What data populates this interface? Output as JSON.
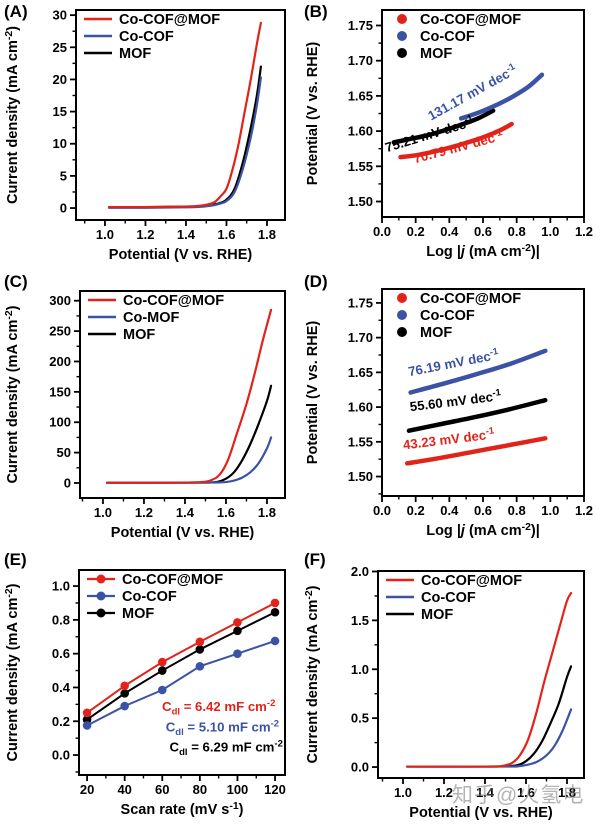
{
  "watermark": {
    "text": "知乎@火氢电",
    "color": "#7d7d7d"
  },
  "colors": {
    "red": "#e2231a",
    "blue": "#3a53a4",
    "black": "#000000"
  },
  "chart_data": [
    {
      "id": "A",
      "panel_label": "(A)",
      "type": "line",
      "series_style": "plain",
      "legend_marker": "line",
      "xlabel": "Potential (V vs. RHE)",
      "ylabel": "Current density (mA cm^{-2})",
      "xlim": [
        0.857,
        1.889
      ],
      "ylim": [
        -1.86,
        30.8
      ],
      "xticks": [
        1.0,
        1.2,
        1.4,
        1.6,
        1.8
      ],
      "yticks": [
        0,
        5,
        10,
        15,
        20,
        25,
        30
      ],
      "xdec": 1,
      "ydec": 0,
      "grid": false,
      "legend_position": "top-left",
      "legend": [
        {
          "name": "Co-COF@MOF",
          "color": "red"
        },
        {
          "name": "Co-COF",
          "color": "blue"
        },
        {
          "name": "MOF",
          "color": "black"
        }
      ],
      "series": [
        {
          "name": "MOF",
          "color": "black",
          "points": [
            [
              1.02,
              0.15
            ],
            [
              1.2,
              0.15
            ],
            [
              1.35,
              0.2
            ],
            [
              1.45,
              0.25
            ],
            [
              1.52,
              0.45
            ],
            [
              1.56,
              0.7
            ],
            [
              1.6,
              1.3
            ],
            [
              1.64,
              3.0
            ],
            [
              1.68,
              7.0
            ],
            [
              1.72,
              12.5
            ],
            [
              1.75,
              17.5
            ],
            [
              1.77,
              22.0
            ]
          ]
        },
        {
          "name": "Co-COF",
          "color": "blue",
          "points": [
            [
              1.02,
              0.05
            ],
            [
              1.2,
              0.05
            ],
            [
              1.35,
              0.1
            ],
            [
              1.45,
              0.15
            ],
            [
              1.52,
              0.35
            ],
            [
              1.56,
              0.6
            ],
            [
              1.6,
              1.1
            ],
            [
              1.64,
              2.5
            ],
            [
              1.68,
              6.0
            ],
            [
              1.72,
              11.0
            ],
            [
              1.75,
              16.0
            ],
            [
              1.77,
              20.3
            ]
          ]
        },
        {
          "name": "Co-COF@MOF",
          "color": "red",
          "points": [
            [
              1.02,
              0.15
            ],
            [
              1.2,
              0.15
            ],
            [
              1.35,
              0.2
            ],
            [
              1.45,
              0.3
            ],
            [
              1.5,
              0.5
            ],
            [
              1.54,
              0.9
            ],
            [
              1.57,
              1.8
            ],
            [
              1.6,
              3.0
            ],
            [
              1.63,
              6.0
            ],
            [
              1.66,
              10.0
            ],
            [
              1.69,
              15.0
            ],
            [
              1.72,
              20.0
            ],
            [
              1.75,
              25.5
            ],
            [
              1.77,
              28.8
            ]
          ]
        }
      ],
      "annotations": []
    },
    {
      "id": "B",
      "panel_label": "(B)",
      "type": "line",
      "series_style": "thick",
      "legend_marker": "dot",
      "xlabel": "Log |*j* (mA cm^{-2})|",
      "ylabel": "Potential (V vs. RHE)",
      "xlim": [
        0.0,
        1.2
      ],
      "ylim": [
        1.478,
        1.772
      ],
      "xticks": [
        0.0,
        0.2,
        0.4,
        0.6,
        0.8,
        1.0,
        1.2
      ],
      "yticks": [
        1.5,
        1.55,
        1.6,
        1.65,
        1.7,
        1.75
      ],
      "xdec": 1,
      "ydec": 2,
      "grid": false,
      "legend_position": "top-left",
      "legend": [
        {
          "name": "Co-COF@MOF",
          "color": "red"
        },
        {
          "name": "Co-COF",
          "color": "blue"
        },
        {
          "name": "MOF",
          "color": "black"
        }
      ],
      "series": [
        {
          "name": "MOF",
          "color": "black",
          "points": [
            [
              0.07,
              1.584
            ],
            [
              0.17,
              1.589
            ],
            [
              0.27,
              1.594
            ],
            [
              0.37,
              1.601
            ],
            [
              0.47,
              1.609
            ],
            [
              0.57,
              1.618
            ],
            [
              0.66,
              1.629
            ]
          ]
        },
        {
          "name": "Co-COF@MOF",
          "color": "red",
          "points": [
            [
              0.11,
              1.563
            ],
            [
              0.21,
              1.566
            ],
            [
              0.31,
              1.571
            ],
            [
              0.41,
              1.577
            ],
            [
              0.51,
              1.584
            ],
            [
              0.61,
              1.592
            ],
            [
              0.7,
              1.601
            ],
            [
              0.77,
              1.61
            ]
          ]
        },
        {
          "name": "Co-COF",
          "color": "blue",
          "points": [
            [
              0.47,
              1.618
            ],
            [
              0.57,
              1.626
            ],
            [
              0.67,
              1.636
            ],
            [
              0.77,
              1.648
            ],
            [
              0.87,
              1.663
            ],
            [
              0.95,
              1.68
            ]
          ]
        }
      ],
      "annotations": [
        {
          "text": "131.17 mV dec^{-1}",
          "color": "blue",
          "x": 0.55,
          "y": 1.649,
          "rot": -29
        },
        {
          "text": "75.21 mV dec^{-1}",
          "color": "black",
          "x": 0.29,
          "y": 1.589,
          "rot": -17
        },
        {
          "text": "70.79 mV dec^{-1}",
          "color": "red",
          "x": 0.46,
          "y": 1.571,
          "rot": -15
        }
      ]
    },
    {
      "id": "C",
      "panel_label": "(C)",
      "type": "line",
      "series_style": "plain",
      "legend_marker": "line",
      "xlabel": "Potential (V vs. RHE)",
      "ylabel": "Current density (mA cm^{-2})",
      "xlim": [
        0.888,
        1.888
      ],
      "ylim": [
        -24.7,
        316
      ],
      "xticks": [
        1.0,
        1.2,
        1.4,
        1.6,
        1.8
      ],
      "yticks": [
        0,
        50,
        100,
        150,
        200,
        250,
        300
      ],
      "xdec": 1,
      "ydec": 0,
      "grid": false,
      "legend_position": "top-left",
      "legend": [
        {
          "name": "Co-COF@MOF",
          "color": "red"
        },
        {
          "name": "Co-MOF",
          "color": "blue"
        },
        {
          "name": "MOF",
          "color": "black"
        }
      ],
      "series": [
        {
          "name": "MOF",
          "color": "black",
          "points": [
            [
              1.02,
              0.5
            ],
            [
              1.3,
              0.5
            ],
            [
              1.5,
              0.8
            ],
            [
              1.56,
              2
            ],
            [
              1.6,
              7
            ],
            [
              1.64,
              18
            ],
            [
              1.68,
              38
            ],
            [
              1.72,
              65
            ],
            [
              1.76,
              98
            ],
            [
              1.8,
              135
            ],
            [
              1.82,
              160
            ]
          ]
        },
        {
          "name": "Co-MOF",
          "color": "blue",
          "points": [
            [
              1.02,
              0.5
            ],
            [
              1.4,
              0.5
            ],
            [
              1.55,
              0.8
            ],
            [
              1.6,
              1.5
            ],
            [
              1.64,
              4
            ],
            [
              1.68,
              9
            ],
            [
              1.72,
              18
            ],
            [
              1.76,
              33
            ],
            [
              1.8,
              57
            ],
            [
              1.82,
              75
            ]
          ]
        },
        {
          "name": "Co-COF@MOF",
          "color": "red",
          "points": [
            [
              1.02,
              0.5
            ],
            [
              1.35,
              0.5
            ],
            [
              1.48,
              1.5
            ],
            [
              1.53,
              5
            ],
            [
              1.57,
              14
            ],
            [
              1.61,
              38
            ],
            [
              1.65,
              78
            ],
            [
              1.7,
              130
            ],
            [
              1.74,
              180
            ],
            [
              1.78,
              235
            ],
            [
              1.82,
              285
            ]
          ]
        }
      ],
      "annotations": []
    },
    {
      "id": "D",
      "panel_label": "(D)",
      "type": "line",
      "series_style": "thick",
      "legend_marker": "dot",
      "xlabel": "Log |*j* (mA cm^{-2})|",
      "ylabel": "Potential (V vs. RHE)",
      "xlim": [
        0.0,
        1.2
      ],
      "ylim": [
        1.472,
        1.77
      ],
      "xticks": [
        0.0,
        0.2,
        0.4,
        0.6,
        0.8,
        1.0,
        1.2
      ],
      "yticks": [
        1.5,
        1.55,
        1.6,
        1.65,
        1.7,
        1.75
      ],
      "xdec": 1,
      "ydec": 2,
      "grid": false,
      "legend_position": "top-left",
      "legend": [
        {
          "name": "Co-COF@MOF",
          "color": "red"
        },
        {
          "name": "Co-COF",
          "color": "blue"
        },
        {
          "name": "MOF",
          "color": "black"
        }
      ],
      "series": [
        {
          "name": "Co-COF",
          "color": "blue",
          "points": [
            [
              0.17,
              1.621
            ],
            [
              0.37,
              1.634
            ],
            [
              0.57,
              1.648
            ],
            [
              0.77,
              1.663
            ],
            [
              0.97,
              1.681
            ]
          ]
        },
        {
          "name": "MOF",
          "color": "black",
          "points": [
            [
              0.16,
              1.566
            ],
            [
              0.36,
              1.576
            ],
            [
              0.56,
              1.586
            ],
            [
              0.76,
              1.597
            ],
            [
              0.97,
              1.61
            ]
          ]
        },
        {
          "name": "Co-COF@MOF",
          "color": "red",
          "points": [
            [
              0.15,
              1.519
            ],
            [
              0.35,
              1.527
            ],
            [
              0.55,
              1.536
            ],
            [
              0.75,
              1.545
            ],
            [
              0.97,
              1.555
            ]
          ]
        }
      ],
      "annotations": [
        {
          "text": "76.19 mV dec^{-1}",
          "color": "blue",
          "x": 0.43,
          "y": 1.657,
          "rot": -11
        },
        {
          "text": "55.60 mV dec^{-1}",
          "color": "black",
          "x": 0.44,
          "y": 1.602,
          "rot": -7
        },
        {
          "text": "43.23 mV dec^{-1}",
          "color": "red",
          "x": 0.4,
          "y": 1.547,
          "rot": -7
        }
      ]
    },
    {
      "id": "E",
      "panel_label": "(E)",
      "type": "scatter",
      "series_style": "marker",
      "legend_marker": "line-marker",
      "xlabel": "Scan rate (mV s^{-1})",
      "ylabel": "Current density (mA cm^{-2})",
      "xlim": [
        15.7,
        125.3
      ],
      "ylim": [
        -0.118,
        1.095
      ],
      "xticks": [
        20,
        40,
        60,
        80,
        100,
        120
      ],
      "yticks": [
        0.0,
        0.2,
        0.4,
        0.6,
        0.8,
        1.0
      ],
      "xdec": 0,
      "ydec": 1,
      "grid": false,
      "legend_position": "top-left",
      "legend": [
        {
          "name": "Co-COF@MOF",
          "color": "red"
        },
        {
          "name": "Co-COF",
          "color": "blue"
        },
        {
          "name": "MOF",
          "color": "black"
        }
      ],
      "series": [
        {
          "name": "MOF",
          "color": "black",
          "points": [
            [
              20,
              0.21
            ],
            [
              40,
              0.365
            ],
            [
              60,
              0.5
            ],
            [
              80,
              0.625
            ],
            [
              100,
              0.735
            ],
            [
              120,
              0.845
            ]
          ]
        },
        {
          "name": "Co-COF",
          "color": "blue",
          "points": [
            [
              20,
              0.175
            ],
            [
              40,
              0.29
            ],
            [
              60,
              0.385
            ],
            [
              80,
              0.525
            ],
            [
              100,
              0.6
            ],
            [
              120,
              0.675
            ]
          ]
        },
        {
          "name": "Co-COF@MOF",
          "color": "red",
          "points": [
            [
              20,
              0.25
            ],
            [
              40,
              0.41
            ],
            [
              60,
              0.55
            ],
            [
              80,
              0.67
            ],
            [
              100,
              0.785
            ],
            [
              120,
              0.9
            ]
          ]
        }
      ],
      "annotations": [
        {
          "text": "C_{dl} = 6.42 mF cm^{-2}",
          "color": "red",
          "x": 90,
          "y": 0.26,
          "rot": 0
        },
        {
          "text": "C_{dl} = 5.10 mF cm^{-2}",
          "color": "blue",
          "x": 92,
          "y": 0.14,
          "rot": 0
        },
        {
          "text": "C_{dl} = 6.29 mF cm^{-2}",
          "color": "black",
          "x": 94,
          "y": 0.022,
          "rot": 0
        }
      ]
    },
    {
      "id": "F",
      "panel_label": "(F)",
      "type": "line",
      "series_style": "plain",
      "legend_marker": "line",
      "xlabel": "Potential (V vs. RHE)",
      "ylabel": "Current density (mA cm^{-2})",
      "xlim": [
        0.878,
        1.883
      ],
      "ylim": [
        -0.112,
        2.005
      ],
      "xticks": [
        1.0,
        1.2,
        1.4,
        1.6,
        1.8
      ],
      "yticks": [
        0.0,
        0.5,
        1.0,
        1.5,
        2.0
      ],
      "xdec": 1,
      "ydec": 1,
      "grid": false,
      "legend_position": "top-left",
      "legend": [
        {
          "name": "Co-COF@MOF",
          "color": "red"
        },
        {
          "name": "Co-COF",
          "color": "blue"
        },
        {
          "name": "MOF",
          "color": "black"
        }
      ],
      "series": [
        {
          "name": "MOF",
          "color": "black",
          "points": [
            [
              1.02,
              0.005
            ],
            [
              1.4,
              0.005
            ],
            [
              1.5,
              0.008
            ],
            [
              1.56,
              0.02
            ],
            [
              1.6,
              0.06
            ],
            [
              1.64,
              0.14
            ],
            [
              1.68,
              0.27
            ],
            [
              1.72,
              0.45
            ],
            [
              1.76,
              0.65
            ],
            [
              1.8,
              0.92
            ],
            [
              1.82,
              1.03
            ]
          ]
        },
        {
          "name": "Co-COF",
          "color": "blue",
          "points": [
            [
              1.02,
              0.005
            ],
            [
              1.5,
              0.005
            ],
            [
              1.56,
              0.008
            ],
            [
              1.6,
              0.02
            ],
            [
              1.65,
              0.05
            ],
            [
              1.7,
              0.12
            ],
            [
              1.74,
              0.22
            ],
            [
              1.78,
              0.38
            ],
            [
              1.82,
              0.59
            ]
          ]
        },
        {
          "name": "Co-COF@MOF",
          "color": "red",
          "points": [
            [
              1.02,
              0.005
            ],
            [
              1.4,
              0.005
            ],
            [
              1.48,
              0.01
            ],
            [
              1.53,
              0.04
            ],
            [
              1.57,
              0.12
            ],
            [
              1.61,
              0.28
            ],
            [
              1.65,
              0.55
            ],
            [
              1.69,
              0.88
            ],
            [
              1.73,
              1.18
            ],
            [
              1.77,
              1.48
            ],
            [
              1.8,
              1.7
            ],
            [
              1.82,
              1.78
            ]
          ]
        }
      ],
      "annotations": []
    }
  ]
}
